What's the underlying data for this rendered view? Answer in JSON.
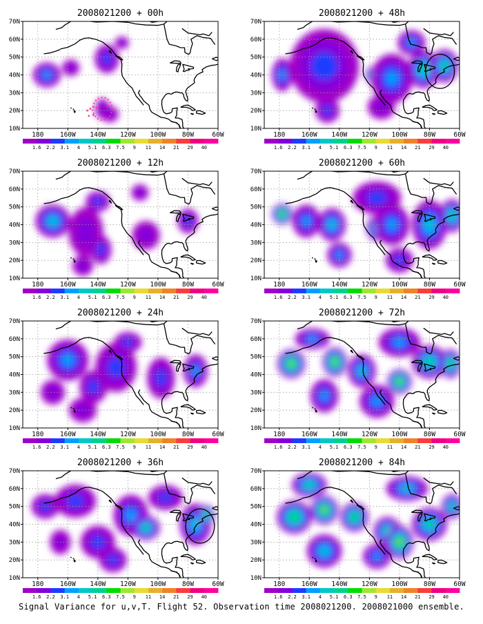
{
  "caption": "Signal Variance for u,v,T. Flight 52. Observation time 2008021200. 2008021000 ensemble.",
  "axes": {
    "lat_ticks": [
      "10N",
      "20N",
      "30N",
      "40N",
      "50N",
      "60N",
      "70N"
    ],
    "lon_ticks": [
      "180",
      "160W",
      "140W",
      "120W",
      "100W",
      "80W",
      "60W"
    ]
  },
  "colorbar": {
    "labels": [
      "1.6",
      "2.2",
      "3.1",
      "4",
      "5.1",
      "6.3",
      "7.5",
      "9",
      "11",
      "14",
      "21",
      "29",
      "40"
    ],
    "colors": [
      "#a000c8",
      "#8200dc",
      "#1e3cff",
      "#00a0ff",
      "#00c8c8",
      "#00d28c",
      "#00dc00",
      "#a0e632",
      "#e6dc32",
      "#e6af2d",
      "#f08228",
      "#fa3c3c",
      "#f00082"
    ]
  },
  "panels": [
    {
      "title": "2008021200 + 00h",
      "blobs": [
        [
          -174,
          40,
          8,
          6,
          3
        ],
        [
          -134,
          49,
          7,
          7,
          2
        ],
        [
          -158,
          44,
          5,
          4,
          1
        ],
        [
          -137,
          21,
          4,
          5,
          1
        ],
        [
          -124,
          58,
          4,
          3,
          1
        ],
        [
          -132,
          18,
          5,
          4,
          1
        ]
      ],
      "circle": [
        -137,
        21,
        4
      ]
    },
    {
      "title": "2008021200 + 48h",
      "blobs": [
        [
          -150,
          45,
          20,
          18,
          2
        ],
        [
          -118,
          40,
          4,
          4,
          5
        ],
        [
          -105,
          38,
          12,
          12,
          3
        ],
        [
          -84,
          43,
          9,
          9,
          5
        ],
        [
          -70,
          45,
          8,
          8,
          5
        ],
        [
          -148,
          20,
          7,
          6,
          2
        ],
        [
          -112,
          22,
          8,
          6,
          1
        ],
        [
          -178,
          40,
          6,
          8,
          3
        ],
        [
          -92,
          58,
          8,
          6,
          3
        ]
      ],
      "circle": [
        -73,
        42,
        6
      ]
    },
    {
      "title": "2008021200 + 12h",
      "blobs": [
        [
          -170,
          42,
          10,
          8,
          4
        ],
        [
          -148,
          36,
          10,
          12,
          1
        ],
        [
          -138,
          26,
          6,
          7,
          2
        ],
        [
          -140,
          53,
          7,
          5,
          2
        ],
        [
          -108,
          34,
          8,
          7,
          1
        ],
        [
          -80,
          42,
          6,
          6,
          2
        ],
        [
          -150,
          17,
          6,
          5,
          1
        ],
        [
          -112,
          58,
          5,
          4,
          1
        ]
      ]
    },
    {
      "title": "2008021200 + 60h",
      "blobs": [
        [
          -178,
          46,
          6,
          5,
          7
        ],
        [
          -162,
          42,
          8,
          8,
          3
        ],
        [
          -145,
          40,
          8,
          8,
          4
        ],
        [
          -115,
          38,
          6,
          6,
          5
        ],
        [
          -105,
          40,
          10,
          10,
          3
        ],
        [
          -80,
          40,
          10,
          12,
          4
        ],
        [
          -65,
          45,
          7,
          8,
          5
        ],
        [
          -140,
          23,
          7,
          6,
          3
        ],
        [
          -100,
          20,
          8,
          6,
          2
        ],
        [
          -115,
          55,
          14,
          8,
          2
        ]
      ]
    },
    {
      "title": "2008021200 + 24h",
      "blobs": [
        [
          -160,
          48,
          12,
          10,
          3
        ],
        [
          -128,
          44,
          12,
          12,
          2
        ],
        [
          -143,
          33,
          8,
          8,
          2
        ],
        [
          -98,
          38,
          8,
          10,
          2
        ],
        [
          -75,
          42,
          7,
          8,
          3
        ],
        [
          -150,
          20,
          8,
          6,
          1
        ],
        [
          -120,
          58,
          8,
          5,
          2
        ],
        [
          -170,
          30,
          7,
          6,
          1
        ]
      ]
    },
    {
      "title": "2008021200 + 72h",
      "blobs": [
        [
          -172,
          46,
          8,
          7,
          7
        ],
        [
          -143,
          47,
          7,
          7,
          7
        ],
        [
          -125,
          42,
          8,
          8,
          4
        ],
        [
          -100,
          36,
          7,
          6,
          7
        ],
        [
          -80,
          47,
          10,
          8,
          5
        ],
        [
          -66,
          46,
          6,
          7,
          6
        ],
        [
          -150,
          28,
          8,
          8,
          3
        ],
        [
          -115,
          25,
          10,
          8,
          3
        ],
        [
          -100,
          58,
          12,
          7,
          3
        ],
        [
          -158,
          60,
          10,
          5,
          3
        ]
      ]
    },
    {
      "title": "2008021200 + 36h",
      "blobs": [
        [
          -175,
          50,
          8,
          6,
          2
        ],
        [
          -155,
          53,
          12,
          8,
          2
        ],
        [
          -118,
          45,
          10,
          10,
          3
        ],
        [
          -108,
          38,
          8,
          6,
          5
        ],
        [
          -75,
          40,
          9,
          10,
          4
        ],
        [
          -68,
          45,
          5,
          5,
          6
        ],
        [
          -140,
          30,
          10,
          8,
          2
        ],
        [
          -130,
          20,
          8,
          6,
          2
        ],
        [
          -165,
          30,
          6,
          6,
          1
        ],
        [
          -95,
          55,
          10,
          6,
          2
        ]
      ],
      "circle": [
        -72,
        39,
        6
      ]
    },
    {
      "title": "2008021200 + 84h",
      "blobs": [
        [
          -170,
          44,
          10,
          8,
          6
        ],
        [
          -150,
          48,
          8,
          7,
          7
        ],
        [
          -130,
          44,
          8,
          7,
          6
        ],
        [
          -108,
          36,
          8,
          7,
          5
        ],
        [
          -80,
          40,
          10,
          8,
          5
        ],
        [
          -100,
          30,
          8,
          8,
          7
        ],
        [
          -150,
          25,
          10,
          8,
          4
        ],
        [
          -115,
          22,
          8,
          6,
          3
        ],
        [
          -160,
          62,
          10,
          6,
          5
        ],
        [
          -95,
          60,
          12,
          6,
          4
        ],
        [
          -65,
          50,
          6,
          6,
          5
        ]
      ]
    }
  ]
}
